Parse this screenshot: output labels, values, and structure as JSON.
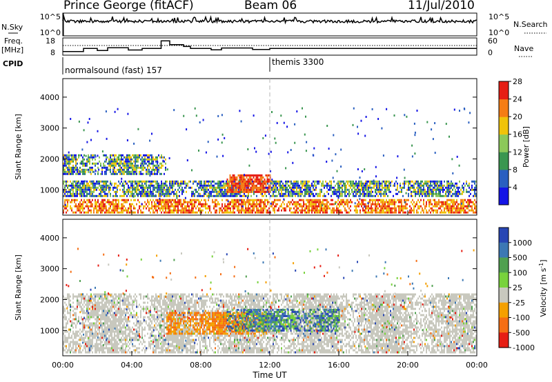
{
  "header": {
    "station": "Prince George (fitACF)",
    "beam": "Beam 06",
    "date": "11/Jul/2010"
  },
  "top_panels": {
    "nsky_label": "N.Sky",
    "nsearch_label": "N.Search",
    "count_top_tick": "10^5",
    "count_bottom_tick": "10^0",
    "freq_label_1": "Freq.",
    "freq_label_2": "[MHz]",
    "freq_ticks": [
      "18",
      "8"
    ],
    "nave_ticks": [
      "60",
      "0"
    ],
    "nave_label": "Nave",
    "cpid_label": "CPID",
    "cpid_segments": [
      {
        "label": "normalsound (fast) 157",
        "start_h": 0,
        "end_h": 12
      },
      {
        "label": "themis 3300",
        "start_h": 12,
        "end_h": 24
      }
    ],
    "frequency_series": {
      "name": "Freq.",
      "x_hours": [
        0,
        1.2,
        1.2,
        2.0,
        2.0,
        2.6,
        2.6,
        3.8,
        3.8,
        4.6,
        4.6,
        5.7,
        5.7,
        6.2,
        6.2,
        7.0,
        7.0,
        7.4,
        7.4,
        8.6,
        8.6,
        9.2,
        9.2,
        10.0,
        10.0,
        11.0,
        11.0,
        12.0,
        12.0,
        24.0
      ],
      "y_mhz": [
        9.5,
        9.5,
        11.5,
        11.5,
        10.2,
        10.2,
        12.0,
        12.0,
        10.5,
        10.5,
        11.5,
        11.5,
        16.5,
        16.5,
        14.0,
        14.0,
        12.8,
        12.8,
        11.5,
        11.5,
        10.6,
        10.6,
        11.8,
        11.8,
        11.8,
        11.8,
        10.8,
        10.8,
        11.5,
        11.5
      ]
    }
  },
  "chart_data": [
    {
      "type": "heatmap",
      "title": "Power",
      "ylabel": "Slant Range [km]",
      "xlabel": "",
      "x_range_hours": [
        0,
        24
      ],
      "ylim_km": [
        180,
        4600
      ],
      "y_ticks": [
        "1000",
        "2000",
        "3000",
        "4000"
      ],
      "colorbar_label": "Power [dB]",
      "colorbar_ticks": [
        "4",
        "8",
        "12",
        "16",
        "20",
        "24",
        "28"
      ],
      "colorbar_colors": [
        "#1414e6",
        "#2a5fc0",
        "#3a9650",
        "#8cc85a",
        "#f0c30a",
        "#f57d14",
        "#e61e14"
      ],
      "scatter_bands": [
        {
          "name": "ground scatter lower",
          "start_h": 0,
          "end_h": 24,
          "range_km": [
            250,
            700
          ],
          "level": "high"
        },
        {
          "name": "main band",
          "start_h": 0,
          "end_h": 24,
          "range_km": [
            800,
            1300
          ],
          "level": "medium"
        },
        {
          "name": "upper band",
          "start_h": 0,
          "end_h": 6,
          "range_km": [
            1500,
            2150
          ],
          "level": "medium"
        },
        {
          "name": "afternoon echoes",
          "start_h": 9.5,
          "end_h": 12,
          "range_km": [
            900,
            1500
          ],
          "level": "high"
        }
      ]
    },
    {
      "type": "heatmap",
      "title": "Velocity",
      "ylabel": "Slant Range [km]",
      "xlabel": "Time UT",
      "x_range_hours": [
        0,
        24
      ],
      "x_ticks": [
        "00:00",
        "04:00",
        "08:00",
        "12:00",
        "16:00",
        "20:00",
        "00:00"
      ],
      "ylim_km": [
        180,
        4600
      ],
      "y_ticks": [
        "1000",
        "2000",
        "3000",
        "4000"
      ],
      "colorbar_label": "Velocity [m s^-1]",
      "colorbar_ticks": [
        "1000",
        "500",
        "100",
        "25",
        "-25",
        "-100",
        "-500",
        "-1000"
      ],
      "colorbar_colors": [
        "#2846b4",
        "#3c78b4",
        "#50a050",
        "#78d23c",
        "#c8c8be",
        "#f5a000",
        "#f56e14",
        "#e61e14"
      ],
      "scatter_bands": [
        {
          "name": "ground scatter",
          "start_h": 0,
          "end_h": 24,
          "range_km": [
            300,
            2200
          ],
          "velocity": "near zero"
        },
        {
          "name": "negative velocity echoes",
          "start_h": 6,
          "end_h": 12,
          "range_km": [
            900,
            1600
          ],
          "velocity": "-500"
        },
        {
          "name": "positive velocity echoes",
          "start_h": 9.5,
          "end_h": 16,
          "range_km": [
            1000,
            1700
          ],
          "velocity": "500"
        }
      ]
    }
  ]
}
